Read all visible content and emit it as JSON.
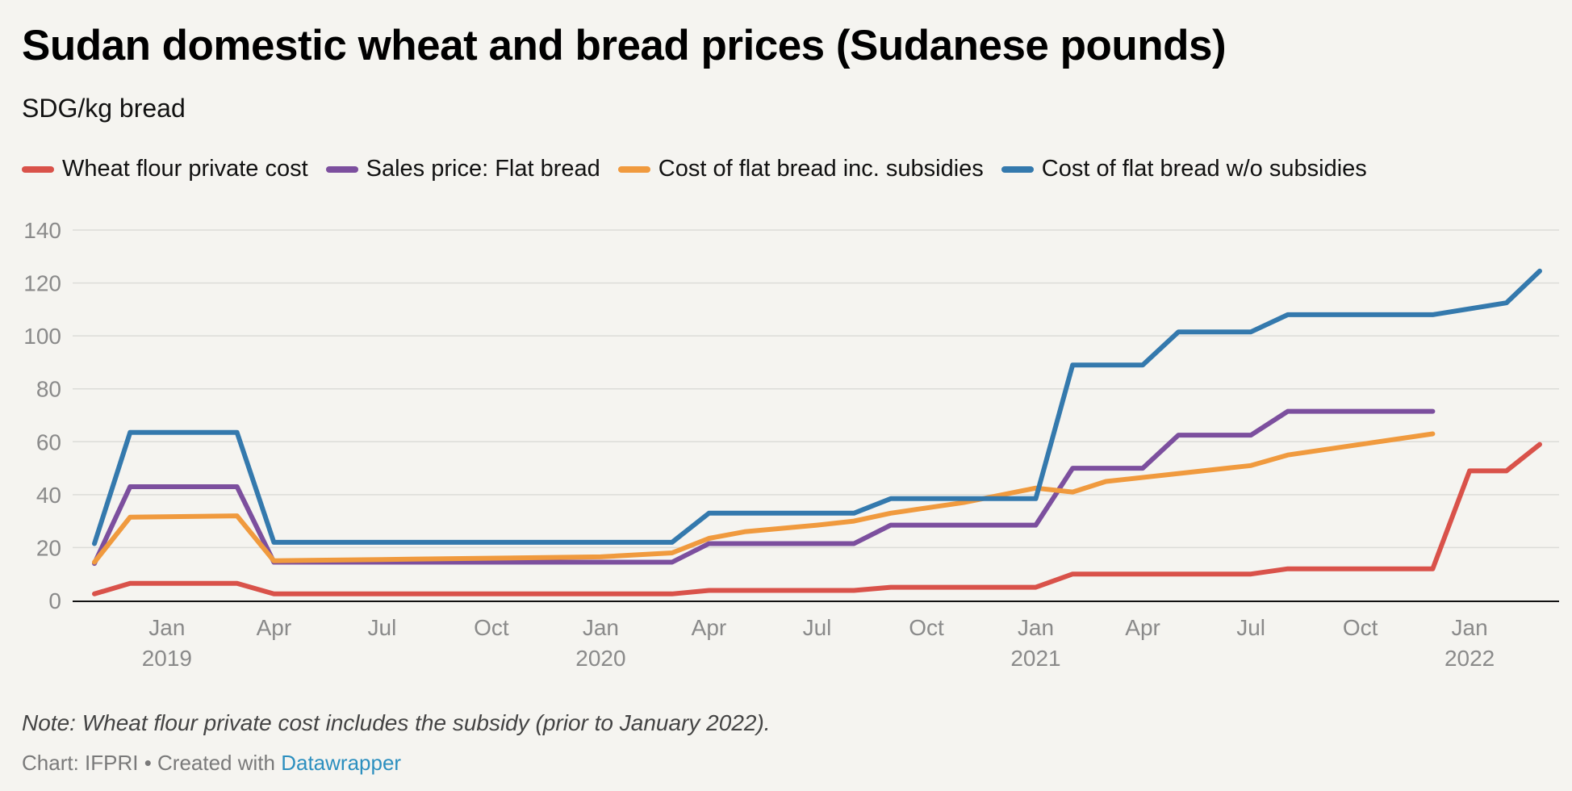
{
  "title": "Sudan domestic wheat and bread prices (Sudanese pounds)",
  "subtitle": "SDG/kg bread",
  "note": "Note: Wheat flour private cost includes the subsidy (prior to January 2022).",
  "source": {
    "prefix": "Chart: IFPRI • Created with ",
    "link": "Datawrapper"
  },
  "chart_data": {
    "type": "line",
    "ylim": [
      0,
      140
    ],
    "yticks": [
      0,
      20,
      40,
      60,
      80,
      100,
      120,
      140
    ],
    "grid": true,
    "legend_position": "top",
    "x_domain": [
      "2018-11-01",
      "2022-03-01"
    ],
    "xticks": [
      {
        "date": "2019-01-01",
        "month": "Jan",
        "year": "2019"
      },
      {
        "date": "2019-04-01",
        "month": "Apr",
        "year": ""
      },
      {
        "date": "2019-07-01",
        "month": "Jul",
        "year": ""
      },
      {
        "date": "2019-10-01",
        "month": "Oct",
        "year": ""
      },
      {
        "date": "2020-01-01",
        "month": "Jan",
        "year": "2020"
      },
      {
        "date": "2020-04-01",
        "month": "Apr",
        "year": ""
      },
      {
        "date": "2020-07-01",
        "month": "Jul",
        "year": ""
      },
      {
        "date": "2020-10-01",
        "month": "Oct",
        "year": ""
      },
      {
        "date": "2021-01-01",
        "month": "Jan",
        "year": "2021"
      },
      {
        "date": "2021-04-01",
        "month": "Apr",
        "year": ""
      },
      {
        "date": "2021-07-01",
        "month": "Jul",
        "year": ""
      },
      {
        "date": "2021-10-01",
        "month": "Oct",
        "year": ""
      },
      {
        "date": "2022-01-01",
        "month": "Jan",
        "year": "2022"
      }
    ],
    "series": [
      {
        "name": "Wheat flour private cost",
        "color": "#d9524a",
        "points": [
          [
            "2018-11-01",
            2.5
          ],
          [
            "2018-12-01",
            6.5
          ],
          [
            "2019-03-01",
            6.5
          ],
          [
            "2019-04-01",
            2.5
          ],
          [
            "2020-03-01",
            2.5
          ],
          [
            "2020-04-01",
            3.8
          ],
          [
            "2020-08-01",
            3.8
          ],
          [
            "2020-09-01",
            5
          ],
          [
            "2021-01-01",
            5
          ],
          [
            "2021-02-01",
            10
          ],
          [
            "2021-07-01",
            10
          ],
          [
            "2021-08-01",
            12
          ],
          [
            "2021-12-01",
            12
          ],
          [
            "2022-01-01",
            49
          ],
          [
            "2022-02-01",
            49
          ],
          [
            "2022-03-01",
            59
          ]
        ]
      },
      {
        "name": "Sales price: Flat bread",
        "color": "#7c4f9e",
        "points": [
          [
            "2018-11-01",
            14
          ],
          [
            "2018-12-01",
            43
          ],
          [
            "2019-03-01",
            43
          ],
          [
            "2019-04-01",
            14.5
          ],
          [
            "2020-03-01",
            14.5
          ],
          [
            "2020-04-01",
            21.5
          ],
          [
            "2020-08-01",
            21.5
          ],
          [
            "2020-09-01",
            28.5
          ],
          [
            "2021-01-01",
            28.5
          ],
          [
            "2021-02-01",
            50
          ],
          [
            "2021-04-01",
            50
          ],
          [
            "2021-05-01",
            62.5
          ],
          [
            "2021-07-01",
            62.5
          ],
          [
            "2021-08-01",
            71.5
          ],
          [
            "2021-12-01",
            71.5
          ]
        ]
      },
      {
        "name": "Cost of flat bread inc. subsidies",
        "color": "#f09a3e",
        "points": [
          [
            "2018-11-01",
            14.5
          ],
          [
            "2018-12-01",
            31.5
          ],
          [
            "2019-03-01",
            32
          ],
          [
            "2019-04-01",
            15
          ],
          [
            "2019-07-01",
            15.5
          ],
          [
            "2020-01-01",
            16.5
          ],
          [
            "2020-03-01",
            18
          ],
          [
            "2020-04-01",
            23.5
          ],
          [
            "2020-05-01",
            26
          ],
          [
            "2020-07-01",
            28.5
          ],
          [
            "2020-08-01",
            30
          ],
          [
            "2020-09-01",
            33
          ],
          [
            "2020-10-01",
            35
          ],
          [
            "2020-11-01",
            37
          ],
          [
            "2021-01-01",
            42.5
          ],
          [
            "2021-02-01",
            41
          ],
          [
            "2021-03-01",
            45
          ],
          [
            "2021-07-01",
            51
          ],
          [
            "2021-08-01",
            55
          ],
          [
            "2021-12-01",
            63
          ]
        ]
      },
      {
        "name": "Cost of flat bread w/o subsidies",
        "color": "#3479ad",
        "points": [
          [
            "2018-11-01",
            21.5
          ],
          [
            "2018-12-01",
            63.5
          ],
          [
            "2019-03-01",
            63.5
          ],
          [
            "2019-04-01",
            22
          ],
          [
            "2020-03-01",
            22
          ],
          [
            "2020-04-01",
            33
          ],
          [
            "2020-08-01",
            33
          ],
          [
            "2020-09-01",
            38.5
          ],
          [
            "2021-01-01",
            38.5
          ],
          [
            "2021-02-01",
            89
          ],
          [
            "2021-04-01",
            89
          ],
          [
            "2021-05-01",
            101.5
          ],
          [
            "2021-07-01",
            101.5
          ],
          [
            "2021-08-01",
            108
          ],
          [
            "2021-12-01",
            108
          ],
          [
            "2022-02-01",
            112.5
          ],
          [
            "2022-03-01",
            124.5
          ]
        ]
      }
    ]
  }
}
